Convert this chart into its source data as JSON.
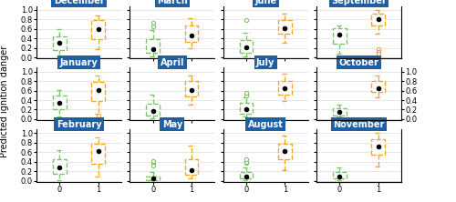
{
  "months_row1": [
    "December",
    "March",
    "June",
    "September"
  ],
  "months_row2": [
    "January",
    "April",
    "July",
    "October"
  ],
  "months_row3": [
    "February",
    "May",
    "August",
    "November"
  ],
  "header_color": "#1F5FA6",
  "header_text_color": "white",
  "green_color": "#7DC36B",
  "orange_color": "#F5A623",
  "box_data": {
    "December": {
      "0": [
        0.02,
        0.15,
        0.3,
        0.45,
        0.6
      ],
      "1": [
        0.18,
        0.38,
        0.6,
        0.78,
        0.88
      ],
      "0_out": [],
      "1_out": []
    },
    "March": {
      "0": [
        0.02,
        0.1,
        0.18,
        0.38,
        0.58
      ],
      "1": [
        0.2,
        0.32,
        0.47,
        0.68,
        0.82
      ],
      "0_out": [
        0.65,
        0.72
      ],
      "1_out": []
    },
    "June": {
      "0": [
        0.02,
        0.1,
        0.22,
        0.36,
        0.52
      ],
      "1": [
        0.3,
        0.5,
        0.62,
        0.78,
        0.92
      ],
      "0_out": [
        0.78
      ],
      "1_out": []
    },
    "September": {
      "0": [
        0.08,
        0.28,
        0.48,
        0.62,
        0.68
      ],
      "1": [
        0.5,
        0.68,
        0.8,
        0.92,
        1.0
      ],
      "0_out": [],
      "1_out": [
        0.18,
        0.12,
        0.08
      ]
    },
    "January": {
      "0": [
        0.05,
        0.2,
        0.35,
        0.5,
        0.62
      ],
      "1": [
        0.12,
        0.38,
        0.62,
        0.78,
        0.92
      ],
      "0_out": [],
      "1_out": [
        0.08
      ]
    },
    "April": {
      "0": [
        0.02,
        0.08,
        0.18,
        0.32,
        0.52
      ],
      "1": [
        0.3,
        0.48,
        0.62,
        0.8,
        0.92
      ],
      "0_out": [],
      "1_out": []
    },
    "July": {
      "0": [
        0.05,
        0.12,
        0.2,
        0.35,
        0.45
      ],
      "1": [
        0.38,
        0.52,
        0.65,
        0.8,
        0.95
      ],
      "0_out": [
        0.5,
        0.55
      ],
      "1_out": []
    },
    "October": {
      "0": [
        0.05,
        0.08,
        0.15,
        0.22,
        0.3
      ],
      "1": [
        0.45,
        0.58,
        0.65,
        0.8,
        0.92
      ],
      "0_out": [],
      "1_out": []
    },
    "February": {
      "0": [
        0.02,
        0.15,
        0.28,
        0.45,
        0.65
      ],
      "1": [
        0.1,
        0.35,
        0.62,
        0.78,
        0.92
      ],
      "0_out": [],
      "1_out": []
    },
    "May": {
      "0": [
        0.01,
        0.02,
        0.05,
        0.1,
        0.18
      ],
      "1": [
        0.05,
        0.12,
        0.22,
        0.45,
        0.75
      ],
      "0_out": [
        0.38,
        0.32,
        0.42
      ],
      "1_out": []
    },
    "August": {
      "0": [
        0.02,
        0.05,
        0.1,
        0.18,
        0.28
      ],
      "1": [
        0.22,
        0.45,
        0.62,
        0.78,
        0.95
      ],
      "0_out": [
        0.38,
        0.4,
        0.45
      ],
      "1_out": []
    },
    "November": {
      "0": [
        0.02,
        0.05,
        0.1,
        0.18,
        0.28
      ],
      "1": [
        0.3,
        0.55,
        0.72,
        0.88,
        1.0
      ],
      "0_out": [],
      "1_out": []
    }
  },
  "ylabel": "Predicted ignition danger",
  "yticks": [
    0.0,
    0.2,
    0.4,
    0.6,
    0.8,
    1.0
  ],
  "xticks": [
    0,
    1
  ],
  "figsize": [
    5.0,
    2.22
  ],
  "dpi": 100
}
